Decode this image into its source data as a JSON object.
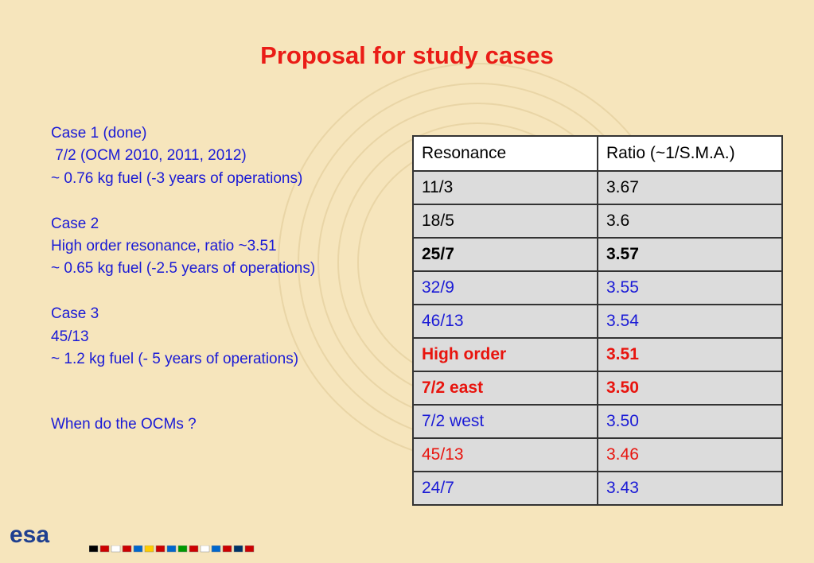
{
  "title": "Proposal for study cases",
  "cases": [
    {
      "lines": [
        "Case 1 (done)",
        " 7/2 (OCM 2010, 2011, 2012)",
        "~ 0.76 kg fuel (-3 years of operations)"
      ]
    },
    {
      "lines": [
        "Case 2",
        "High order resonance, ratio ~3.51",
        "~ 0.65 kg fuel (-2.5 years of operations)"
      ]
    },
    {
      "lines": [
        "Case 3",
        "45/13",
        "~ 1.2 kg fuel (- 5 years of operations)"
      ]
    }
  ],
  "question": "When do the OCMs ?",
  "table": {
    "header": [
      "Resonance",
      "Ratio (~1/S.M.A.)"
    ],
    "rows": [
      [
        "11/3",
        "3.67"
      ],
      [
        "18/5",
        "3.6"
      ],
      [
        "25/7",
        "3.57"
      ],
      [
        "32/9",
        "3.55"
      ],
      [
        "46/13",
        "3.54"
      ],
      [
        "High order",
        "3.51"
      ],
      [
        "7/2 east",
        "3.50"
      ],
      [
        "7/2 west",
        "3.50"
      ],
      [
        "45/13",
        "3.46"
      ],
      [
        "24/7",
        "3.43"
      ]
    ]
  },
  "logo": "esa"
}
